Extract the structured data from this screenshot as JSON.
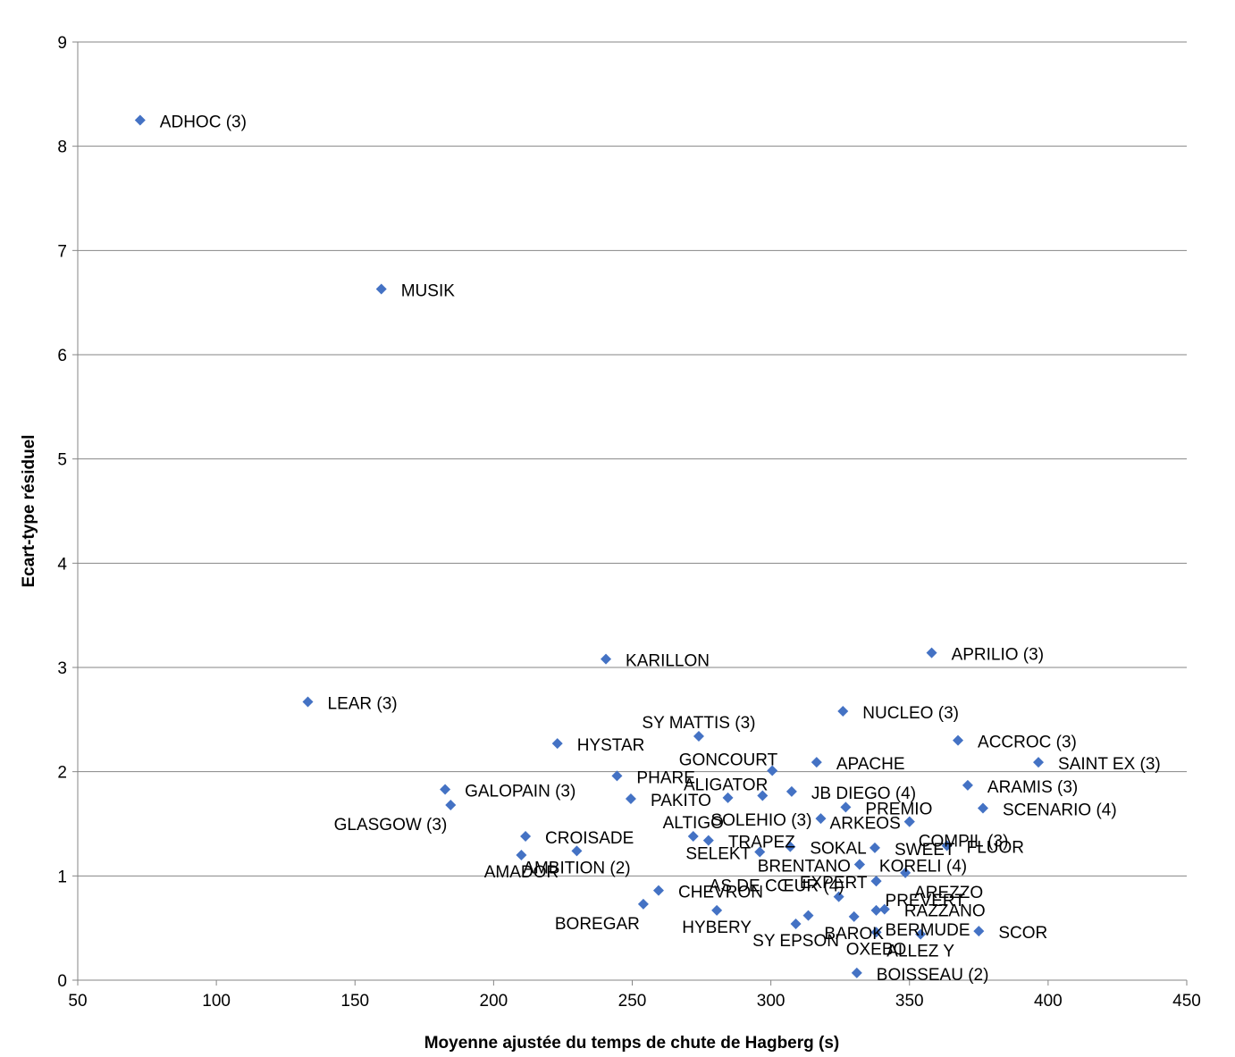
{
  "chart_data": {
    "type": "scatter",
    "title": "",
    "xlabel": "Moyenne ajustée du temps de chute de Hagberg (s)",
    "ylabel": "Ecart-type résiduel",
    "xlim": [
      50,
      450
    ],
    "ylim": [
      0,
      9
    ],
    "xticks": [
      50,
      100,
      150,
      200,
      250,
      300,
      350,
      400,
      450
    ],
    "yticks": [
      0,
      1,
      2,
      3,
      4,
      5,
      6,
      7,
      8,
      9
    ],
    "grid": "horizontal",
    "legend": "none",
    "marker_color": "#4472C4",
    "gridline_color": "#868686",
    "points": [
      {
        "label": "ADHOC (3)",
        "x": 72.5,
        "y": 8.25,
        "pos": "r"
      },
      {
        "label": "MUSIK",
        "x": 159.5,
        "y": 6.63,
        "pos": "r"
      },
      {
        "label": "LEAR (3)",
        "x": 133,
        "y": 2.67,
        "pos": "r"
      },
      {
        "label": "KARILLON",
        "x": 240.5,
        "y": 3.08,
        "pos": "r"
      },
      {
        "label": "APRILIO (3)",
        "x": 358,
        "y": 3.14,
        "pos": "r"
      },
      {
        "label": "NUCLEO (3)",
        "x": 326,
        "y": 2.58,
        "pos": "r"
      },
      {
        "label": "SY MATTIS (3)",
        "x": 274,
        "y": 2.34,
        "pos": "t"
      },
      {
        "label": "HYSTAR",
        "x": 223,
        "y": 2.27,
        "pos": "r"
      },
      {
        "label": "ACCROC (3)",
        "x": 367.5,
        "y": 2.3,
        "pos": "r"
      },
      {
        "label": "SAINT EX (3)",
        "x": 396.5,
        "y": 2.09,
        "pos": "r"
      },
      {
        "label": "GONCOURT",
        "x": 300.5,
        "y": 2.01,
        "pos": "tl"
      },
      {
        "label": "APACHE",
        "x": 316.5,
        "y": 2.09,
        "pos": "r"
      },
      {
        "label": "PHARE",
        "x": 244.5,
        "y": 1.96,
        "pos": "r"
      },
      {
        "label": "GALOPAIN (3)",
        "x": 182.5,
        "y": 1.83,
        "pos": "r"
      },
      {
        "label": "ARAMIS (3)",
        "x": 371,
        "y": 1.87,
        "pos": "r"
      },
      {
        "label": "ALIGATOR",
        "x": 297,
        "y": 1.77,
        "pos": "tl"
      },
      {
        "label": "JB DIEGO (4)",
        "x": 307.5,
        "y": 1.81,
        "pos": "r"
      },
      {
        "label": "PAKITO",
        "x": 249.5,
        "y": 1.74,
        "pos": "r"
      },
      {
        "label": "",
        "x": 284.5,
        "y": 1.75,
        "pos": "r"
      },
      {
        "label": "GLASGOW (3)",
        "x": 184.5,
        "y": 1.68,
        "pos": "bl"
      },
      {
        "label": "PREMIO",
        "x": 327,
        "y": 1.66,
        "pos": "r"
      },
      {
        "label": "SCENARIO (4)",
        "x": 376.5,
        "y": 1.65,
        "pos": "r"
      },
      {
        "label": "SOLEHIO (3)",
        "x": 318,
        "y": 1.55,
        "pos": "l"
      },
      {
        "label": "ARKEOS",
        "x": 350,
        "y": 1.52,
        "pos": "l"
      },
      {
        "label": "COMPIL (3)",
        "x": 350,
        "y": 1.52,
        "pos": "br"
      },
      {
        "label": "CROISADE",
        "x": 211.5,
        "y": 1.38,
        "pos": "r"
      },
      {
        "label": "ALTIGO",
        "x": 272,
        "y": 1.38,
        "pos": "t"
      },
      {
        "label": "TRAPEZ",
        "x": 277.5,
        "y": 1.34,
        "pos": "r"
      },
      {
        "label": "SOKAL",
        "x": 307,
        "y": 1.28,
        "pos": "r"
      },
      {
        "label": "SWEET",
        "x": 337.5,
        "y": 1.27,
        "pos": "r"
      },
      {
        "label": "FLUOR",
        "x": 363.5,
        "y": 1.29,
        "pos": "r"
      },
      {
        "label": "AMBITION (2)",
        "x": 230,
        "y": 1.24,
        "pos": "b"
      },
      {
        "label": "SELEKT",
        "x": 296,
        "y": 1.23,
        "pos": "l"
      },
      {
        "label": "AMADOR",
        "x": 210,
        "y": 1.2,
        "pos": "b"
      },
      {
        "label": "BRENTANO",
        "x": 332,
        "y": 1.11,
        "pos": "l"
      },
      {
        "label": "KORELI (4)",
        "x": 332,
        "y": 1.11,
        "pos": "r"
      },
      {
        "label": "AREZZO",
        "x": 348.5,
        "y": 1.03,
        "pos": "br"
      },
      {
        "label": "EXPERT",
        "x": 338,
        "y": 0.95,
        "pos": "l"
      },
      {
        "label": "PREVERT",
        "x": 338,
        "y": 0.95,
        "pos": "br"
      },
      {
        "label": "CHEVRON",
        "x": 259.5,
        "y": 0.86,
        "pos": "r"
      },
      {
        "label": "AS DE CŒUR (4)",
        "x": 324.5,
        "y": 0.8,
        "pos": "tl"
      },
      {
        "label": "",
        "x": 313.5,
        "y": 0.62,
        "pos": "r"
      },
      {
        "label": "BOREGAR",
        "x": 254,
        "y": 0.73,
        "pos": "bl"
      },
      {
        "label": "RAZZANO",
        "x": 341,
        "y": 0.68,
        "pos": "r"
      },
      {
        "label": "BERMUDE",
        "x": 338,
        "y": 0.67,
        "pos": "br"
      },
      {
        "label": "HYBERY",
        "x": 280.5,
        "y": 0.67,
        "pos": "b"
      },
      {
        "label": "BAROK",
        "x": 330,
        "y": 0.61,
        "pos": "b"
      },
      {
        "label": "SY EPSON",
        "x": 309,
        "y": 0.54,
        "pos": "b"
      },
      {
        "label": "SCOR",
        "x": 375,
        "y": 0.47,
        "pos": "r"
      },
      {
        "label": "OXEBO",
        "x": 338,
        "y": 0.46,
        "pos": "b"
      },
      {
        "label": "ALLEZ Y",
        "x": 354,
        "y": 0.44,
        "pos": "b"
      },
      {
        "label": "BOISSEAU (2)",
        "x": 331,
        "y": 0.07,
        "pos": "r"
      }
    ]
  }
}
